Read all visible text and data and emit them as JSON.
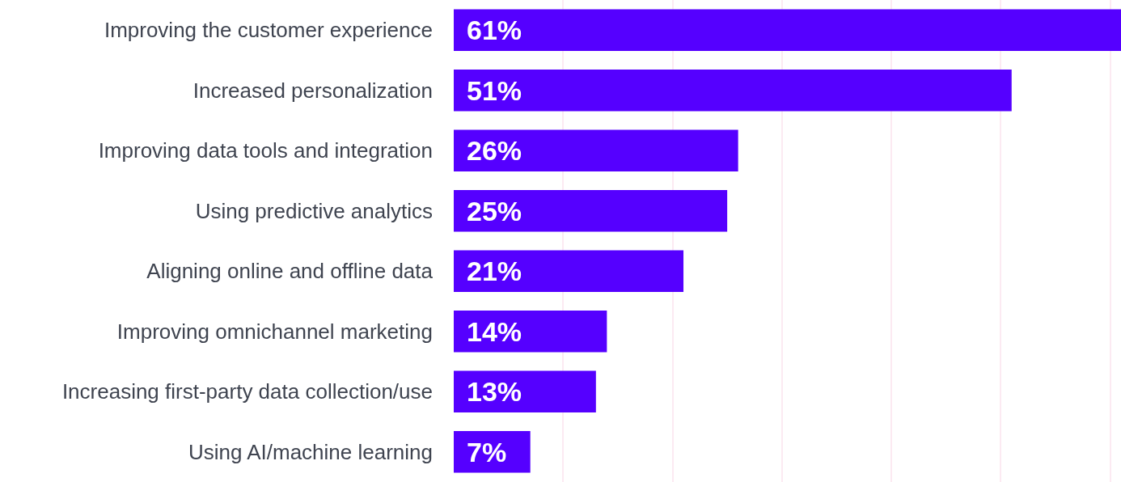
{
  "chart_data": {
    "type": "bar",
    "orientation": "horizontal",
    "categories": [
      "Improving the customer experience",
      "Increased personalization",
      "Improving data tools and integration",
      "Using predictive analytics",
      "Aligning online and offline data",
      "Improving omnichannel marketing",
      "Increasing first-party data collection/use",
      "Using AI/machine learning"
    ],
    "values": [
      61,
      51,
      26,
      25,
      21,
      14,
      13,
      7
    ],
    "color": "#5500ff",
    "value_labels": [
      "61%",
      "51%",
      "26%",
      "25%",
      "21%",
      "14%",
      "13%",
      "7%"
    ],
    "xlim": [
      0,
      61
    ],
    "xticks": [
      {
        "value": 10,
        "label": null
      },
      {
        "value": 20,
        "label": null
      },
      {
        "value": 30,
        "label": null
      },
      {
        "value": 40,
        "label": null
      },
      {
        "value": 50,
        "label": null
      },
      {
        "value": 60,
        "label": null
      }
    ],
    "tick_labels": "y",
    "grid": "x"
  }
}
